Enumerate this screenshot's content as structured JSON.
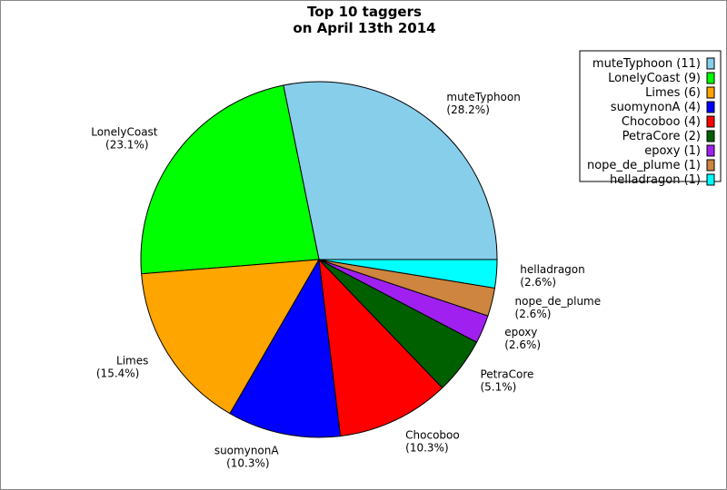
{
  "chart_data": {
    "type": "pie",
    "title": [
      "Top 10 taggers",
      "on April 13th 2014"
    ],
    "start_angle_deg": 0,
    "direction": "counterclockwise",
    "legend_placement": "top-right",
    "slices": [
      {
        "name": "muteTyphoon",
        "value": 11,
        "percent": "28.2%",
        "color": "#87CEEB"
      },
      {
        "name": "LonelyCoast",
        "value": 9,
        "percent": "23.1%",
        "color": "#00FF00"
      },
      {
        "name": "Limes",
        "value": 6,
        "percent": "15.4%",
        "color": "#FFA500"
      },
      {
        "name": "suomynonA",
        "value": 4,
        "percent": "10.3%",
        "color": "#0000FF"
      },
      {
        "name": "Chocoboo",
        "value": 4,
        "percent": "10.3%",
        "color": "#FF0000"
      },
      {
        "name": "PetraCore",
        "value": 2,
        "percent": "5.1%",
        "color": "#006000"
      },
      {
        "name": "epoxy",
        "value": 1,
        "percent": "2.6%",
        "color": "#A020F0"
      },
      {
        "name": "nope_de_plume",
        "value": 1,
        "percent": "2.6%",
        "color": "#CD853F"
      },
      {
        "name": "helladragon",
        "value": 1,
        "percent": "2.6%",
        "color": "#00FFFF"
      }
    ]
  }
}
